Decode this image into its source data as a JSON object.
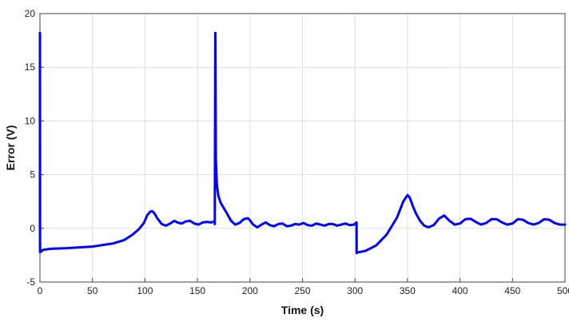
{
  "chart_data": {
    "type": "line",
    "title": "",
    "xlabel": "Time (s)",
    "ylabel": "Error (V)",
    "xlim": [
      0,
      500
    ],
    "ylim": [
      -5,
      20
    ],
    "xticks": [
      0,
      50,
      100,
      150,
      200,
      250,
      300,
      350,
      400,
      450,
      500
    ],
    "xtick_labels": [
      "0",
      "50",
      "100",
      "150",
      "200",
      "250",
      "300",
      "350",
      "400",
      "450",
      "500"
    ],
    "yticks": [
      -5,
      0,
      5,
      10,
      15,
      20
    ],
    "ytick_labels": [
      "-5",
      "0",
      "5",
      "10",
      "15",
      "20"
    ],
    "grid": true,
    "line_color": "#0000ff",
    "grid_color": "#e0e0e0",
    "series": [
      {
        "x": [
          0,
          0,
          0.1,
          0.5,
          3,
          10,
          25,
          50,
          70,
          80,
          88,
          94,
          99,
          102,
          105,
          107,
          109,
          112,
          116,
          120,
          124,
          128,
          131,
          135,
          139,
          143,
          147,
          151,
          155,
          159,
          163,
          166.4,
          166.5,
          167,
          167.5,
          168.5,
          170,
          172,
          175,
          178,
          182,
          186,
          190,
          194,
          198,
          200,
          203,
          207,
          211,
          215,
          219,
          223,
          227,
          231,
          235,
          239,
          243,
          247,
          251,
          255,
          259,
          263,
          267,
          271,
          275,
          279,
          283,
          287,
          291,
          295,
          299,
          301.5,
          301.6,
          302,
          310,
          320,
          330,
          340,
          346,
          350,
          352,
          355,
          358,
          362,
          366,
          370,
          375,
          380,
          385,
          390,
          395,
          400,
          405,
          410,
          415,
          420,
          425,
          430,
          435,
          440,
          445,
          450,
          455,
          460,
          465,
          470,
          475,
          480,
          485,
          490,
          495,
          500
        ],
        "values": [
          0,
          18.2,
          -2.2,
          -2.2,
          -2.0,
          -1.9,
          -1.85,
          -1.7,
          -1.4,
          -1.1,
          -0.6,
          -0.1,
          0.5,
          1.2,
          1.55,
          1.6,
          1.4,
          0.9,
          0.4,
          0.25,
          0.45,
          0.7,
          0.55,
          0.45,
          0.65,
          0.7,
          0.45,
          0.35,
          0.55,
          0.6,
          0.55,
          0.65,
          0.4,
          18.2,
          6.5,
          4.0,
          3.0,
          2.4,
          1.9,
          1.4,
          0.7,
          0.35,
          0.5,
          0.85,
          0.95,
          0.75,
          0.35,
          0.1,
          0.35,
          0.55,
          0.3,
          0.2,
          0.4,
          0.45,
          0.2,
          0.25,
          0.4,
          0.35,
          0.5,
          0.3,
          0.25,
          0.45,
          0.35,
          0.25,
          0.4,
          0.4,
          0.25,
          0.35,
          0.45,
          0.3,
          0.35,
          0.55,
          -2.3,
          -2.25,
          -2.1,
          -1.6,
          -0.6,
          1.0,
          2.5,
          3.1,
          2.9,
          2.1,
          1.4,
          0.7,
          0.25,
          0.1,
          0.3,
          0.9,
          1.2,
          0.7,
          0.35,
          0.45,
          0.85,
          0.9,
          0.6,
          0.35,
          0.5,
          0.85,
          0.85,
          0.55,
          0.35,
          0.45,
          0.85,
          0.8,
          0.5,
          0.35,
          0.5,
          0.85,
          0.8,
          0.5,
          0.35,
          0.35
        ]
      }
    ]
  }
}
